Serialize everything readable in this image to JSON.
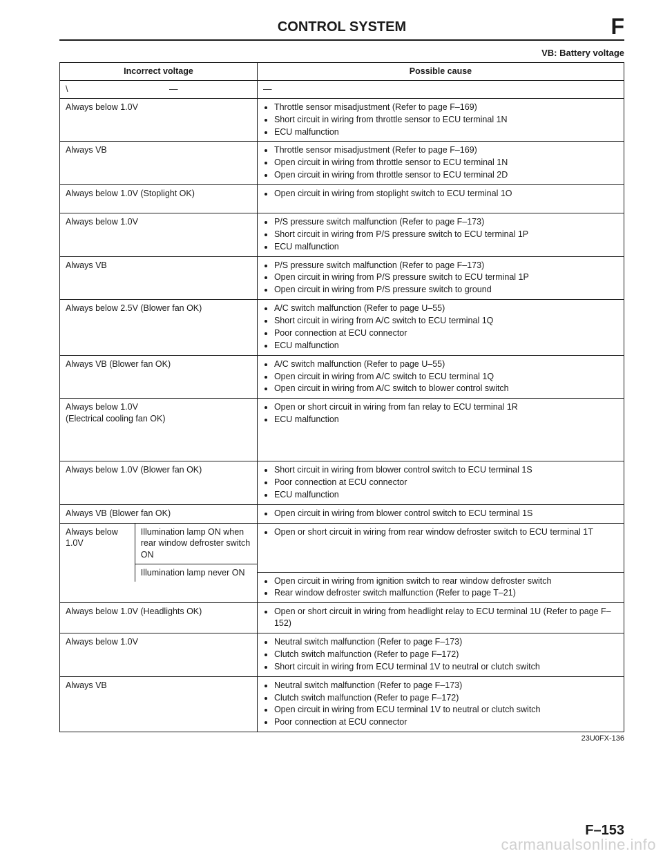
{
  "header": {
    "title": "CONTROL SYSTEM",
    "section_letter": "F"
  },
  "subheader": "VB: Battery voltage",
  "table": {
    "columns": [
      "Incorrect voltage",
      "Possible cause"
    ],
    "rows": [
      {
        "voltage": "—",
        "voltage_slash": true,
        "causes_text": "—",
        "causes_center": true
      },
      {
        "voltage": "Always below 1.0V",
        "causes": [
          "Throttle sensor misadjustment (Refer to page F–169)",
          "Short circuit in wiring from throttle sensor to ECU terminal 1N",
          "ECU malfunction"
        ]
      },
      {
        "voltage": "Always VB",
        "causes": [
          "Throttle sensor misadjustment (Refer to page F–169)",
          "Open circuit in wiring from throttle sensor to ECU terminal 1N",
          "Open circuit in wiring from throttle sensor to ECU terminal 2D"
        ]
      },
      {
        "voltage": "Always below 1.0V (Stoplight OK)",
        "causes": [
          "Open circuit in wiring from stoplight switch to ECU terminal 1O"
        ],
        "extra_space": true
      },
      {
        "voltage": "Always below 1.0V",
        "causes": [
          "P/S pressure switch malfunction (Refer to page F–173)",
          "Short circuit in wiring from P/S pressure switch to ECU terminal 1P",
          "ECU malfunction"
        ]
      },
      {
        "voltage": "Always VB",
        "causes": [
          "P/S pressure switch malfunction (Refer to page F–173)",
          "Open circuit in wiring from P/S pressure switch to ECU terminal 1P",
          "Open circuit in wiring from P/S pressure switch to ground"
        ]
      },
      {
        "voltage": "Always below 2.5V (Blower fan OK)",
        "causes": [
          "A/C switch malfunction (Refer to page U–55)",
          "Short circuit in wiring from A/C switch to ECU terminal 1Q",
          "Poor connection at ECU connector",
          "ECU malfunction"
        ]
      },
      {
        "voltage": "Always VB (Blower fan OK)",
        "causes": [
          "A/C switch malfunction (Refer to page U–55)",
          "Open circuit in wiring from A/C switch to ECU terminal 1Q",
          "Open circuit in wiring from A/C switch to blower control switch"
        ]
      },
      {
        "voltage": "Always below 1.0V\n(Electrical cooling fan OK)",
        "causes": [
          "Open or short circuit in wiring from fan relay to ECU terminal 1R",
          "ECU malfunction"
        ],
        "tall": true
      },
      {
        "voltage": "Always below 1.0V (Blower fan OK)",
        "causes": [
          "Short circuit in wiring from blower control switch to ECU terminal 1S",
          "Poor connection at ECU connector",
          "ECU malfunction"
        ]
      },
      {
        "voltage": "Always VB (Blower fan OK)",
        "causes": [
          "Open circuit in wiring from blower control switch to ECU terminal 1S"
        ]
      },
      {
        "voltage_split": {
          "left": "Always below 1.0V",
          "right_rows": [
            {
              "cond": "Illumination lamp ON when rear window defroster switch ON",
              "causes": [
                "Open or short circuit in wiring from rear window defroster switch to ECU terminal 1T"
              ]
            },
            {
              "cond": "Illumination lamp never ON",
              "causes": [
                "Open circuit in wiring from ignition switch to rear window defroster switch",
                "Rear window defroster switch malfunction (Refer to page T–21)"
              ]
            }
          ]
        }
      },
      {
        "voltage": "Always below 1.0V (Headlights OK)",
        "causes": [
          "Open or short circuit in wiring from headlight relay to ECU terminal 1U (Refer to page F–152)"
        ]
      },
      {
        "voltage": "Always below 1.0V",
        "causes": [
          "Neutral switch malfunction (Refer to page F–173)",
          "Clutch switch malfunction (Refer to page F–172)",
          "Short circuit in wiring from ECU terminal 1V to neutral or clutch switch"
        ]
      },
      {
        "voltage": "Always VB",
        "causes": [
          "Neutral switch malfunction (Refer to page F–173)",
          "Clutch switch malfunction (Refer to page F–172)",
          "Open circuit in wiring from ECU terminal 1V to neutral or clutch switch",
          "Poor connection at ECU connector"
        ]
      }
    ]
  },
  "footer_code": "23U0FX-136",
  "page_number": "F–153",
  "watermark": "carmanualsonline.info"
}
